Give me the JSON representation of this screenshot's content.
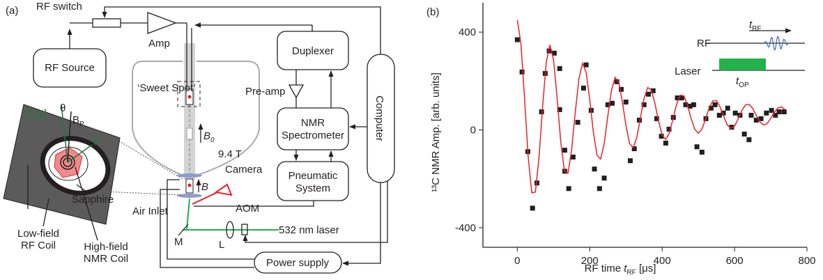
{
  "panel_a": {
    "label": "(a)",
    "rf_switch": "RF switch",
    "rf_source": "RF Source",
    "amp": "Amp",
    "duplexer": "Duplexer",
    "pre_amp": "Pre-amp",
    "nmr_spectrometer": [
      "NMR",
      "Spectrometer"
    ],
    "pneumatic_system": [
      "Pneumatic",
      "System"
    ],
    "computer": "Computer",
    "power_supply": "Power supply",
    "sweet_spot": "‘Sweet Spot’",
    "b0": {
      "symbol": "B",
      "subscript": "0"
    },
    "field": "9.4 T",
    "camera": "Camera",
    "air_inlet": "Air Inlet",
    "b": "B",
    "aom": "AOM",
    "laser": "532 nm laser",
    "mirror": "M",
    "lens": "L",
    "crystal_axis": "[111]",
    "theta": "θ",
    "bp": {
      "symbol": "B",
      "subscript": "P"
    },
    "n_hat": "n̂",
    "sapphire": "Sapphire",
    "low_field_coil": [
      "Low-field",
      "RF Coil"
    ],
    "high_field_coil": [
      "High-field",
      "NMR Coil"
    ]
  },
  "chart_data": {
    "type": "scatter",
    "panel_label": "(b)",
    "y_label": "¹³C NMR Amp. [arb. units]",
    "x_label": {
      "text": "RF time",
      "variable": "t",
      "subscript": "RF",
      "unit": "[μs]"
    },
    "xlim": [
      -95,
      800
    ],
    "xticks": [
      0,
      200,
      400,
      600,
      800
    ],
    "ylim": [
      -480,
      520
    ],
    "yticks": [
      -400,
      0,
      400
    ],
    "series": [
      {
        "type": "scatter",
        "color": "#231f20",
        "x": [
          0,
          13,
          29,
          42,
          54,
          67,
          77,
          88,
          102,
          117,
          117,
          131,
          131,
          142,
          154,
          167,
          183,
          190,
          204,
          213,
          227,
          240,
          250,
          262,
          275,
          287,
          300,
          312,
          323,
          337,
          350,
          362,
          375,
          385,
          398,
          410,
          419,
          431,
          442,
          454,
          465,
          477,
          487,
          496,
          510,
          521,
          535,
          546,
          558,
          569,
          581,
          592,
          602,
          615,
          627,
          640,
          646,
          660,
          673,
          688,
          702,
          713,
          723,
          737
        ],
        "values": [
          369,
          237,
          -89,
          -320,
          -217,
          74,
          231,
          323,
          314,
          251,
          83,
          -83,
          -169,
          -240,
          -111,
          31,
          171,
          266,
          80,
          -160,
          -240,
          -197,
          103,
          109,
          197,
          166,
          114,
          -126,
          -77,
          40,
          103,
          146,
          160,
          46,
          -26,
          -54,
          3,
          51,
          131,
          131,
          103,
          97,
          103,
          -69,
          -91,
          46,
          89,
          103,
          60,
          69,
          89,
          11,
          69,
          60,
          -17,
          -40,
          60,
          40,
          46,
          69,
          80,
          60,
          74,
          74
        ]
      },
      {
        "type": "line",
        "color": "#e8202a",
        "x": [
          0,
          10,
          20,
          30,
          40,
          50,
          60,
          70,
          80,
          90,
          100,
          110,
          120,
          130,
          140,
          150,
          160,
          170,
          180,
          190,
          200,
          210,
          220,
          230,
          240,
          250,
          260,
          270,
          280,
          290,
          300,
          310,
          320,
          330,
          340,
          350,
          360,
          370,
          380,
          390,
          400,
          410,
          420,
          430,
          440,
          450,
          460,
          470,
          480,
          490,
          500,
          510,
          520,
          530,
          540,
          550,
          560,
          570,
          580,
          590,
          600,
          610,
          620,
          630,
          640,
          650,
          660,
          670,
          680,
          690,
          700,
          710,
          720,
          730,
          740
        ],
        "values": [
          450,
          351,
          129,
          -109,
          -257,
          -254,
          -112,
          97,
          277,
          348,
          287,
          129,
          -49,
          -168,
          -177,
          -81,
          72,
          209,
          272,
          236,
          124,
          -9,
          -103,
          -119,
          -54,
          57,
          162,
          215,
          196,
          117,
          19,
          -56,
          -73,
          -31,
          49,
          129,
          173,
          164,
          109,
          36,
          -22,
          -39,
          -12,
          46,
          106,
          142,
          139,
          102,
          48,
          3,
          -14,
          3,
          45,
          90,
          119,
          120,
          94,
          55,
          20,
          6,
          16,
          45,
          79,
          102,
          105,
          88,
          59,
          33,
          20,
          26,
          47,
          72,
          90,
          94,
          82
        ]
      }
    ],
    "inset": {
      "rf": "RF",
      "laser": "Laser",
      "t_rf": {
        "symbol": "t",
        "subscript": "RF"
      },
      "t_op": {
        "symbol": "t",
        "subscript": "OP"
      },
      "rf_color": "#4a6fb5",
      "laser_color": "#22b14c"
    }
  }
}
